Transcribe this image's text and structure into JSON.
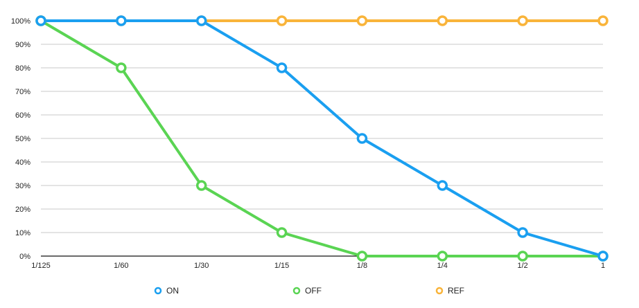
{
  "chart_data": {
    "type": "line",
    "categories": [
      "1/125",
      "1/60",
      "1/30",
      "1/15",
      "1/8",
      "1/4",
      "1/2",
      "1"
    ],
    "y_ticks": [
      "0%",
      "10%",
      "20%",
      "30%",
      "40%",
      "50%",
      "60%",
      "70%",
      "80%",
      "90%",
      "100%"
    ],
    "ylim": [
      0,
      100
    ],
    "grid": true,
    "legend_position": "bottom",
    "series": [
      {
        "name": "ON",
        "color": "#1a9ff0",
        "values": [
          100,
          100,
          100,
          80,
          50,
          30,
          10,
          0
        ]
      },
      {
        "name": "OFF",
        "color": "#5ad453",
        "values": [
          100,
          80,
          30,
          10,
          0,
          0,
          0,
          0
        ]
      },
      {
        "name": "REF",
        "color": "#f9b43a",
        "values": [
          100,
          100,
          100,
          100,
          100,
          100,
          100,
          100
        ]
      }
    ]
  }
}
